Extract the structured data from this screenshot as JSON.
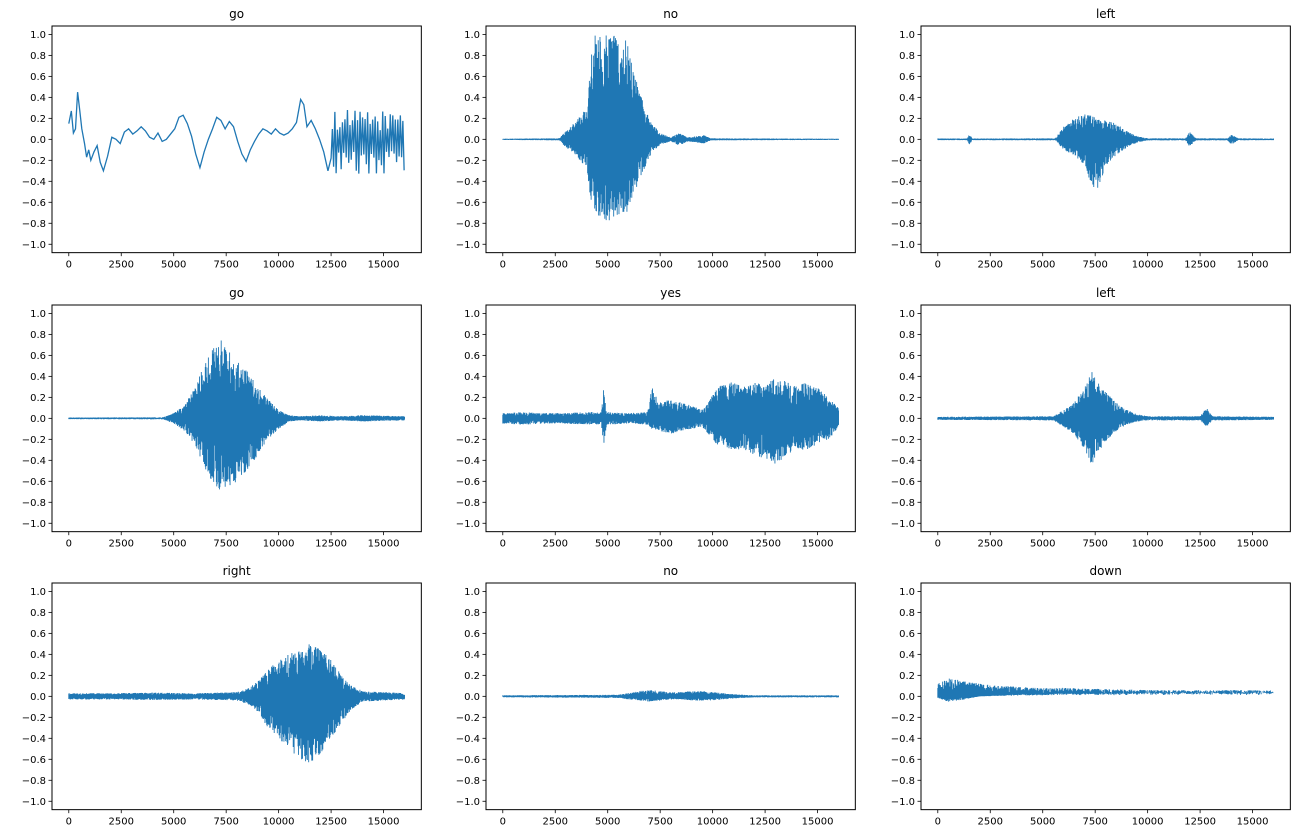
{
  "figure": {
    "background": "#ffffff",
    "line_color": "#1f77b4",
    "rows": 3,
    "cols": 3
  },
  "axes": {
    "xlim": [
      -800,
      16800
    ],
    "ylim": [
      -1.08,
      1.08
    ],
    "x_ticks": [
      {
        "v": 0,
        "label": "0"
      },
      {
        "v": 2500,
        "label": "2500"
      },
      {
        "v": 5000,
        "label": "5000"
      },
      {
        "v": 7500,
        "label": "7500"
      },
      {
        "v": 10000,
        "label": "10000"
      },
      {
        "v": 12500,
        "label": "12500"
      },
      {
        "v": 15000,
        "label": "15000"
      }
    ],
    "y_ticks": [
      {
        "v": 1.0,
        "label": "1.0"
      },
      {
        "v": 0.8,
        "label": "0.8"
      },
      {
        "v": 0.6,
        "label": "0.6"
      },
      {
        "v": 0.4,
        "label": "0.4"
      },
      {
        "v": 0.2,
        "label": "0.2"
      },
      {
        "v": 0.0,
        "label": "0.0"
      },
      {
        "v": -0.2,
        "label": "−0.2"
      },
      {
        "v": -0.4,
        "label": "−0.4"
      },
      {
        "v": -0.6,
        "label": "−0.6"
      },
      {
        "v": -0.8,
        "label": "−0.8"
      },
      {
        "v": -1.0,
        "label": "−1.0"
      }
    ]
  },
  "chart_data": [
    {
      "type": "line",
      "title": "go",
      "style": "smooth",
      "xlabel": "",
      "ylabel": "",
      "points": [
        [
          0,
          0.15
        ],
        [
          120,
          0.27
        ],
        [
          220,
          0.06
        ],
        [
          320,
          0.1
        ],
        [
          420,
          0.45
        ],
        [
          520,
          0.28
        ],
        [
          620,
          0.1
        ],
        [
          750,
          -0.04
        ],
        [
          850,
          -0.17
        ],
        [
          950,
          -0.1
        ],
        [
          1050,
          -0.2
        ],
        [
          1200,
          -0.12
        ],
        [
          1350,
          -0.06
        ],
        [
          1500,
          -0.22
        ],
        [
          1650,
          -0.3
        ],
        [
          1850,
          -0.16
        ],
        [
          2050,
          0.02
        ],
        [
          2250,
          0.0
        ],
        [
          2450,
          -0.04
        ],
        [
          2650,
          0.07
        ],
        [
          2850,
          0.1
        ],
        [
          3050,
          0.05
        ],
        [
          3250,
          0.08
        ],
        [
          3450,
          0.12
        ],
        [
          3650,
          0.08
        ],
        [
          3850,
          0.02
        ],
        [
          4050,
          0.0
        ],
        [
          4250,
          0.06
        ],
        [
          4450,
          -0.02
        ],
        [
          4650,
          0.0
        ],
        [
          4850,
          0.05
        ],
        [
          5050,
          0.1
        ],
        [
          5250,
          0.21
        ],
        [
          5450,
          0.23
        ],
        [
          5650,
          0.15
        ],
        [
          5850,
          0.03
        ],
        [
          6050,
          -0.14
        ],
        [
          6250,
          -0.27
        ],
        [
          6450,
          -0.12
        ],
        [
          6650,
          0.0
        ],
        [
          6850,
          0.1
        ],
        [
          7050,
          0.21
        ],
        [
          7250,
          0.18
        ],
        [
          7450,
          0.1
        ],
        [
          7650,
          0.17
        ],
        [
          7850,
          0.12
        ],
        [
          8050,
          -0.02
        ],
        [
          8250,
          -0.14
        ],
        [
          8450,
          -0.21
        ],
        [
          8650,
          -0.1
        ],
        [
          8850,
          -0.02
        ],
        [
          9050,
          0.05
        ],
        [
          9250,
          0.1
        ],
        [
          9450,
          0.08
        ],
        [
          9650,
          0.05
        ],
        [
          9850,
          0.1
        ],
        [
          10050,
          0.06
        ],
        [
          10250,
          0.04
        ],
        [
          10450,
          0.06
        ],
        [
          10650,
          0.1
        ],
        [
          10850,
          0.16
        ],
        [
          11050,
          0.38
        ],
        [
          11200,
          0.33
        ],
        [
          11350,
          0.12
        ],
        [
          11550,
          0.18
        ],
        [
          11750,
          0.1
        ],
        [
          11950,
          0.0
        ],
        [
          12150,
          -0.12
        ],
        [
          12350,
          -0.3
        ],
        [
          12500,
          -0.18
        ]
      ],
      "noise_tail": {
        "start": 12560,
        "end": 16000,
        "top": 0.28,
        "bottom": -0.33
      }
    },
    {
      "type": "line",
      "title": "no",
      "style": "dense",
      "xlabel": "",
      "ylabel": "",
      "envelope": [
        [
          0,
          0.006,
          -0.006
        ],
        [
          2700,
          0.01,
          -0.01
        ],
        [
          3000,
          0.08,
          -0.08
        ],
        [
          3500,
          0.18,
          -0.15
        ],
        [
          4000,
          0.3,
          -0.3
        ],
        [
          4300,
          1.0,
          -0.72
        ],
        [
          5000,
          1.0,
          -0.78
        ],
        [
          5500,
          1.0,
          -0.75
        ],
        [
          5900,
          0.95,
          -0.7
        ],
        [
          6300,
          0.62,
          -0.5
        ],
        [
          6700,
          0.35,
          -0.3
        ],
        [
          7100,
          0.16,
          -0.13
        ],
        [
          7500,
          0.06,
          -0.05
        ],
        [
          8000,
          0.02,
          -0.02
        ],
        [
          8400,
          0.06,
          -0.06
        ],
        [
          8800,
          0.02,
          -0.02
        ],
        [
          9600,
          0.04,
          -0.04
        ],
        [
          9900,
          0.01,
          -0.01
        ],
        [
          16000,
          0.006,
          -0.006
        ]
      ]
    },
    {
      "type": "line",
      "title": "left",
      "style": "dense",
      "xlabel": "",
      "ylabel": "",
      "envelope": [
        [
          0,
          0.008,
          -0.008
        ],
        [
          1400,
          0.008,
          -0.008
        ],
        [
          1500,
          0.05,
          -0.05
        ],
        [
          1650,
          0.008,
          -0.008
        ],
        [
          5600,
          0.01,
          -0.01
        ],
        [
          6000,
          0.12,
          -0.1
        ],
        [
          6500,
          0.2,
          -0.15
        ],
        [
          7000,
          0.25,
          -0.25
        ],
        [
          7400,
          0.22,
          -0.5
        ],
        [
          7700,
          0.2,
          -0.45
        ],
        [
          8000,
          0.18,
          -0.25
        ],
        [
          8500,
          0.15,
          -0.15
        ],
        [
          9000,
          0.08,
          -0.08
        ],
        [
          9500,
          0.03,
          -0.03
        ],
        [
          10000,
          0.01,
          -0.01
        ],
        [
          11800,
          0.01,
          -0.01
        ],
        [
          12000,
          0.07,
          -0.07
        ],
        [
          12300,
          0.01,
          -0.01
        ],
        [
          13800,
          0.01,
          -0.01
        ],
        [
          14000,
          0.05,
          -0.05
        ],
        [
          14300,
          0.01,
          -0.01
        ],
        [
          16000,
          0.008,
          -0.008
        ]
      ]
    },
    {
      "type": "line",
      "title": "go",
      "style": "dense",
      "xlabel": "",
      "ylabel": "",
      "envelope": [
        [
          0,
          0.008,
          -0.008
        ],
        [
          4500,
          0.01,
          -0.01
        ],
        [
          5000,
          0.05,
          -0.05
        ],
        [
          5500,
          0.12,
          -0.12
        ],
        [
          6000,
          0.3,
          -0.25
        ],
        [
          6500,
          0.55,
          -0.5
        ],
        [
          7000,
          0.7,
          -0.65
        ],
        [
          7300,
          0.76,
          -0.7
        ],
        [
          7600,
          0.65,
          -0.68
        ],
        [
          8000,
          0.55,
          -0.6
        ],
        [
          8500,
          0.45,
          -0.5
        ],
        [
          9000,
          0.3,
          -0.35
        ],
        [
          9500,
          0.18,
          -0.2
        ],
        [
          10000,
          0.08,
          -0.1
        ],
        [
          10500,
          0.03,
          -0.03
        ],
        [
          11000,
          0.02,
          -0.02
        ],
        [
          12000,
          0.03,
          -0.03
        ],
        [
          13000,
          0.02,
          -0.02
        ],
        [
          14000,
          0.03,
          -0.03
        ],
        [
          16000,
          0.02,
          -0.02
        ]
      ]
    },
    {
      "type": "line",
      "title": "yes",
      "style": "dense",
      "xlabel": "",
      "ylabel": "",
      "envelope": [
        [
          0,
          0.05,
          -0.05
        ],
        [
          1000,
          0.06,
          -0.06
        ],
        [
          2000,
          0.05,
          -0.05
        ],
        [
          3000,
          0.05,
          -0.05
        ],
        [
          4000,
          0.06,
          -0.06
        ],
        [
          4700,
          0.06,
          -0.06
        ],
        [
          4800,
          0.27,
          -0.27
        ],
        [
          4950,
          0.06,
          -0.06
        ],
        [
          6000,
          0.05,
          -0.05
        ],
        [
          6900,
          0.06,
          -0.06
        ],
        [
          7100,
          0.3,
          -0.1
        ],
        [
          7500,
          0.15,
          -0.12
        ],
        [
          8000,
          0.18,
          -0.15
        ],
        [
          8500,
          0.15,
          -0.12
        ],
        [
          9000,
          0.12,
          -0.1
        ],
        [
          9500,
          0.08,
          -0.08
        ],
        [
          9800,
          0.15,
          -0.15
        ],
        [
          10200,
          0.3,
          -0.25
        ],
        [
          10800,
          0.35,
          -0.3
        ],
        [
          11500,
          0.3,
          -0.3
        ],
        [
          12000,
          0.35,
          -0.35
        ],
        [
          12500,
          0.3,
          -0.4
        ],
        [
          13000,
          0.4,
          -0.45
        ],
        [
          13500,
          0.35,
          -0.35
        ],
        [
          14000,
          0.3,
          -0.3
        ],
        [
          14500,
          0.35,
          -0.3
        ],
        [
          15000,
          0.3,
          -0.25
        ],
        [
          15500,
          0.2,
          -0.2
        ],
        [
          16000,
          0.1,
          -0.1
        ]
      ]
    },
    {
      "type": "line",
      "title": "left",
      "style": "dense",
      "xlabel": "",
      "ylabel": "",
      "envelope": [
        [
          0,
          0.015,
          -0.015
        ],
        [
          5500,
          0.02,
          -0.02
        ],
        [
          6000,
          0.08,
          -0.08
        ],
        [
          6500,
          0.15,
          -0.15
        ],
        [
          7000,
          0.3,
          -0.3
        ],
        [
          7300,
          0.46,
          -0.45
        ],
        [
          7600,
          0.35,
          -0.35
        ],
        [
          8000,
          0.25,
          -0.22
        ],
        [
          8500,
          0.15,
          -0.12
        ],
        [
          9000,
          0.08,
          -0.06
        ],
        [
          9500,
          0.04,
          -0.03
        ],
        [
          10000,
          0.02,
          -0.02
        ],
        [
          12500,
          0.02,
          -0.02
        ],
        [
          12800,
          0.1,
          -0.08
        ],
        [
          13100,
          0.02,
          -0.02
        ],
        [
          16000,
          0.015,
          -0.015
        ]
      ]
    },
    {
      "type": "line",
      "title": "right",
      "style": "dense",
      "xlabel": "",
      "ylabel": "",
      "envelope": [
        [
          0,
          0.03,
          -0.03
        ],
        [
          2000,
          0.03,
          -0.03
        ],
        [
          4000,
          0.035,
          -0.035
        ],
        [
          6000,
          0.03,
          -0.03
        ],
        [
          8000,
          0.04,
          -0.04
        ],
        [
          8600,
          0.08,
          -0.08
        ],
        [
          9000,
          0.15,
          -0.15
        ],
        [
          9500,
          0.25,
          -0.3
        ],
        [
          10000,
          0.35,
          -0.4
        ],
        [
          10500,
          0.4,
          -0.5
        ],
        [
          11000,
          0.45,
          -0.6
        ],
        [
          11500,
          0.5,
          -0.65
        ],
        [
          12000,
          0.45,
          -0.55
        ],
        [
          12500,
          0.35,
          -0.4
        ],
        [
          13000,
          0.2,
          -0.25
        ],
        [
          13500,
          0.1,
          -0.12
        ],
        [
          14000,
          0.05,
          -0.05
        ],
        [
          15000,
          0.04,
          -0.04
        ],
        [
          16000,
          0.03,
          -0.03
        ]
      ]
    },
    {
      "type": "line",
      "title": "no",
      "style": "dense",
      "xlabel": "",
      "ylabel": "",
      "envelope": [
        [
          0,
          0.01,
          -0.01
        ],
        [
          5500,
          0.015,
          -0.015
        ],
        [
          6000,
          0.03,
          -0.03
        ],
        [
          6500,
          0.05,
          -0.04
        ],
        [
          7000,
          0.06,
          -0.05
        ],
        [
          7500,
          0.05,
          -0.04
        ],
        [
          8000,
          0.04,
          -0.03
        ],
        [
          8500,
          0.04,
          -0.03
        ],
        [
          9000,
          0.05,
          -0.04
        ],
        [
          9500,
          0.05,
          -0.04
        ],
        [
          10000,
          0.04,
          -0.04
        ],
        [
          10500,
          0.03,
          -0.03
        ],
        [
          11000,
          0.02,
          -0.02
        ],
        [
          12000,
          0.01,
          -0.01
        ],
        [
          16000,
          0.01,
          -0.01
        ]
      ]
    },
    {
      "type": "line",
      "title": "down",
      "style": "dense",
      "xlabel": "",
      "ylabel": "",
      "envelope": [
        [
          0,
          0.12,
          -0.02
        ],
        [
          500,
          0.17,
          -0.05
        ],
        [
          1000,
          0.16,
          -0.04
        ],
        [
          1500,
          0.14,
          -0.02
        ],
        [
          2000,
          0.12,
          0.0
        ],
        [
          3000,
          0.1,
          0.01
        ],
        [
          4000,
          0.09,
          0.02
        ],
        [
          5000,
          0.08,
          0.02
        ],
        [
          6000,
          0.08,
          0.03
        ],
        [
          8000,
          0.07,
          0.03
        ],
        [
          10000,
          0.06,
          0.04
        ],
        [
          12000,
          0.06,
          0.04
        ],
        [
          14000,
          0.06,
          0.04
        ],
        [
          16000,
          0.055,
          0.045
        ]
      ]
    }
  ]
}
